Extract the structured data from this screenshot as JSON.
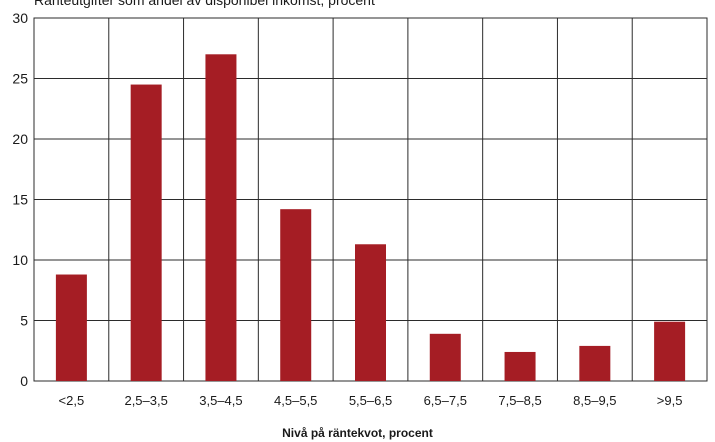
{
  "chart_data": {
    "type": "bar",
    "title": "Ränteutgifter som andel av disponibel inkomst, procent",
    "xlabel": "Nivå på räntekvot, procent",
    "ylabel": "",
    "categories": [
      "<2,5",
      "2,5–3,5",
      "3,5–4,5",
      "4,5–5,5",
      "5,5–6,5",
      "6,5–7,5",
      "7,5–8,5",
      "8,5–9,5",
      ">9,5"
    ],
    "values": [
      8.8,
      24.5,
      27.0,
      14.2,
      11.3,
      3.9,
      2.4,
      2.9,
      4.9
    ],
    "ylim": [
      0,
      30
    ],
    "yticks": [
      0,
      5,
      10,
      15,
      20,
      25,
      30
    ],
    "grid": true,
    "legend": "none",
    "colors": {
      "bar": "#a51d24",
      "grid": "#2b2b2b"
    }
  }
}
